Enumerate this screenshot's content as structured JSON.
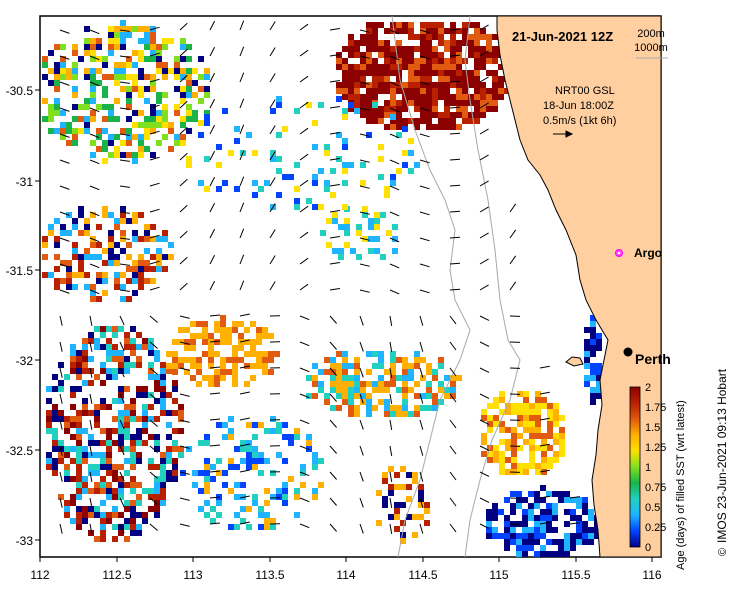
{
  "map": {
    "title": "21-Jun-2021 12Z",
    "scale_labels": [
      "200m",
      "1000m"
    ],
    "current_source": "NRT00 GSL",
    "current_time": "18-Jun 18:00Z",
    "vector_scale": "0.5m/s (1kt 6h)",
    "credit": "IMOS 23-Jun-2021 09:13 Hobart",
    "credit_symbol": "©",
    "places": [
      {
        "name": "Argo",
        "lon": 115.84,
        "lat": -31.45,
        "marker": "magenta-circle"
      },
      {
        "name": "Perth",
        "lon": 115.86,
        "lat": -31.95,
        "marker": "black-dot"
      }
    ],
    "colors": {
      "land": "#FFCFA0",
      "ocean_nodata": "#FFFFFF",
      "isobath": "#A8A8A8",
      "argo": "#FF44FF"
    },
    "extent": {
      "lon": [
        112,
        116.1
      ],
      "lat": [
        -33.15,
        -30.1
      ]
    }
  },
  "axes": {
    "x_ticks": [
      "112",
      "112.5",
      "113",
      "113.5",
      "114",
      "114.5",
      "115",
      "115.5",
      "116"
    ],
    "y_ticks": [
      "-30.5",
      "-31",
      "-31.5",
      "-32",
      "-32.5",
      "-33"
    ]
  },
  "colorbar": {
    "label": "Age (days) of filled SST (wrt latest)",
    "ticks": [
      "2",
      "1.75",
      "1.5",
      "1.25",
      "1",
      "0.75",
      "0.5",
      "0.25",
      "0"
    ],
    "stops": [
      "#000080",
      "#0044FF",
      "#1EB4FF",
      "#22D0C0",
      "#1AB34A",
      "#80E020",
      "#FFE000",
      "#FFB000",
      "#E05A10",
      "#B82000",
      "#8B0000"
    ]
  }
}
